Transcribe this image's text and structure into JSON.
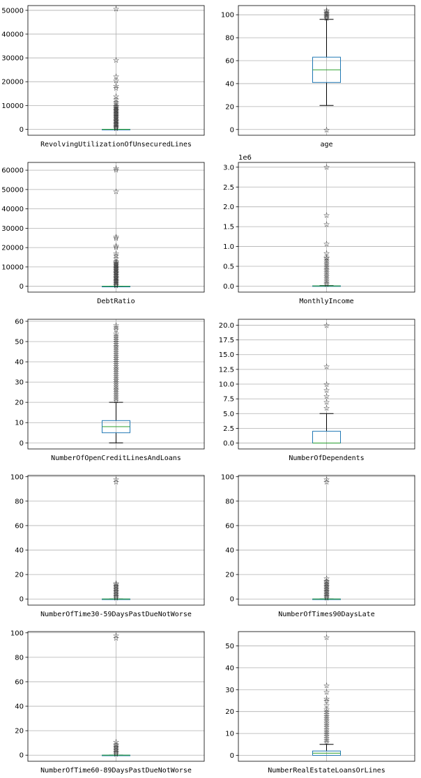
{
  "chart_data": [
    {
      "type": "box",
      "xlabel": "RevolvingUtilizationOfUnsecuredLines",
      "ylim": [
        -2500,
        52000
      ],
      "yticks": [
        0,
        10000,
        20000,
        30000,
        40000,
        50000
      ],
      "tick_labels": [
        "0",
        "10000",
        "20000",
        "30000",
        "40000",
        "50000"
      ],
      "box": {
        "whislo": 0,
        "q1": 0.03,
        "med": 0.15,
        "q3": 0.56,
        "whishi": 1.35
      },
      "fliers": [
        50708,
        29110,
        22198,
        20514,
        18300,
        17441,
        13930,
        12600,
        11500,
        10800,
        10000,
        9600,
        9200,
        8800,
        8400,
        8000,
        7600,
        7200,
        6800,
        6400,
        6000,
        5600,
        5200,
        4800,
        4400,
        4000,
        3600,
        3200,
        2800,
        2400,
        2000,
        1600,
        1200,
        800,
        400
      ]
    },
    {
      "type": "box",
      "xlabel": "age",
      "ylim": [
        -5,
        108
      ],
      "yticks": [
        0,
        20,
        40,
        60,
        80,
        100
      ],
      "tick_labels": [
        "0",
        "20",
        "40",
        "60",
        "80",
        "100"
      ],
      "box": {
        "whislo": 21,
        "q1": 41,
        "med": 52,
        "q3": 63,
        "whishi": 96
      },
      "fliers": [
        0,
        97,
        98,
        99,
        100,
        101,
        102,
        103,
        104
      ]
    },
    {
      "type": "box",
      "xlabel": "DebtRatio",
      "ylim": [
        -3000,
        64000
      ],
      "yticks": [
        0,
        10000,
        20000,
        30000,
        40000,
        50000,
        60000
      ],
      "tick_labels": [
        "0",
        "10000",
        "20000",
        "30000",
        "40000",
        "50000",
        "60000"
      ],
      "box": {
        "whislo": 0,
        "q1": 0.18,
        "med": 0.37,
        "q3": 0.87,
        "whishi": 1.9
      },
      "fliers": [
        61106,
        60212,
        49112,
        25600,
        25000,
        21000,
        20200,
        17000,
        16000,
        14500,
        13000,
        12500,
        12000,
        11500,
        11000,
        10500,
        10000,
        9500,
        9000,
        8500,
        8000,
        7500,
        7000,
        6500,
        6000,
        5500,
        5000,
        4500,
        4000,
        3500,
        3000,
        2500,
        2000,
        1500,
        1000,
        500
      ]
    },
    {
      "type": "box",
      "xlabel": "MonthlyIncome",
      "offset_text": "1e6",
      "ylim": [
        -0.15,
        3.12
      ],
      "yticks": [
        0,
        0.5,
        1.0,
        1.5,
        2.0,
        2.5,
        3.0
      ],
      "tick_labels": [
        "0.0",
        "0.5",
        "1.0",
        "1.5",
        "2.0",
        "2.5",
        "3.0"
      ],
      "box": {
        "whislo": 0,
        "q1": 0.0034,
        "med": 0.0054,
        "q3": 0.0082,
        "whishi": 0.0155
      },
      "fliers": [
        3.008,
        1.795,
        1.56,
        1.073,
        0.835,
        0.73,
        0.7,
        0.65,
        0.6,
        0.55,
        0.5,
        0.45,
        0.4,
        0.35,
        0.3,
        0.25,
        0.2,
        0.15,
        0.1,
        0.05
      ]
    },
    {
      "type": "box",
      "xlabel": "NumberOfOpenCreditLinesAndLoans",
      "ylim": [
        -3,
        61
      ],
      "yticks": [
        0,
        10,
        20,
        30,
        40,
        50,
        60
      ],
      "tick_labels": [
        "0",
        "10",
        "20",
        "30",
        "40",
        "50",
        "60"
      ],
      "box": {
        "whislo": 0,
        "q1": 5,
        "med": 8,
        "q3": 11,
        "whishi": 20
      },
      "fliers": [
        21,
        22,
        23,
        24,
        25,
        26,
        27,
        28,
        29,
        30,
        31,
        32,
        33,
        34,
        35,
        36,
        37,
        38,
        39,
        40,
        41,
        42,
        43,
        44,
        45,
        46,
        47,
        48,
        49,
        50,
        51,
        52,
        53,
        54,
        56,
        57,
        58
      ]
    },
    {
      "type": "box",
      "xlabel": "NumberOfDependents",
      "ylim": [
        -1,
        21
      ],
      "yticks": [
        0,
        2.5,
        5,
        7.5,
        10,
        12.5,
        15,
        17.5,
        20
      ],
      "tick_labels": [
        "0.0",
        "2.5",
        "5.0",
        "7.5",
        "10.0",
        "12.5",
        "15.0",
        "17.5",
        "20.0"
      ],
      "box": {
        "whislo": 0,
        "q1": 0,
        "med": 0,
        "q3": 2,
        "whishi": 5
      },
      "fliers": [
        6,
        7,
        8,
        9,
        10,
        13,
        20
      ]
    },
    {
      "type": "box",
      "xlabel": "NumberOfTime30-59DaysPastDueNotWorse",
      "ylim": [
        -5,
        101
      ],
      "yticks": [
        0,
        20,
        40,
        60,
        80,
        100
      ],
      "tick_labels": [
        "0",
        "20",
        "40",
        "60",
        "80",
        "100"
      ],
      "box": {
        "whislo": 0,
        "q1": 0,
        "med": 0,
        "q3": 0,
        "whishi": 0
      },
      "fliers": [
        1,
        2,
        3,
        4,
        5,
        6,
        7,
        8,
        9,
        10,
        11,
        12,
        13,
        96,
        98
      ]
    },
    {
      "type": "box",
      "xlabel": "NumberOfTimes90DaysLate",
      "ylim": [
        -5,
        101
      ],
      "yticks": [
        0,
        20,
        40,
        60,
        80,
        100
      ],
      "tick_labels": [
        "0",
        "20",
        "40",
        "60",
        "80",
        "100"
      ],
      "box": {
        "whislo": 0,
        "q1": 0,
        "med": 0,
        "q3": 0,
        "whishi": 0
      },
      "fliers": [
        1,
        2,
        3,
        4,
        5,
        6,
        7,
        8,
        9,
        10,
        11,
        12,
        13,
        14,
        15,
        17,
        96,
        98
      ]
    },
    {
      "type": "box",
      "xlabel": "NumberOfTime60-89DaysPastDueNotWorse",
      "ylim": [
        -5,
        101
      ],
      "yticks": [
        0,
        20,
        40,
        60,
        80,
        100
      ],
      "tick_labels": [
        "0",
        "20",
        "40",
        "60",
        "80",
        "100"
      ],
      "box": {
        "whislo": 0,
        "q1": 0,
        "med": 0,
        "q3": 0,
        "whishi": 0
      },
      "fliers": [
        1,
        2,
        3,
        4,
        5,
        6,
        7,
        8,
        9,
        11,
        96,
        98
      ]
    },
    {
      "type": "box",
      "xlabel": "NumberRealEstateLoansOrLines",
      "ylim": [
        -2.7,
        56.5
      ],
      "yticks": [
        0,
        10,
        20,
        30,
        40,
        50
      ],
      "tick_labels": [
        "0",
        "10",
        "20",
        "30",
        "40",
        "50"
      ],
      "box": {
        "whislo": 0,
        "q1": 0,
        "med": 1,
        "q3": 2,
        "whishi": 5
      },
      "fliers": [
        6,
        7,
        8,
        9,
        10,
        11,
        12,
        13,
        14,
        15,
        16,
        17,
        18,
        19,
        20,
        21,
        23,
        25,
        26,
        29,
        32,
        54
      ]
    }
  ],
  "flier_marker": "☆",
  "colors": {
    "box": "#1f77b4",
    "median": "#2ca02c",
    "whisker": "#000000",
    "grid": "#b0b0b0"
  }
}
